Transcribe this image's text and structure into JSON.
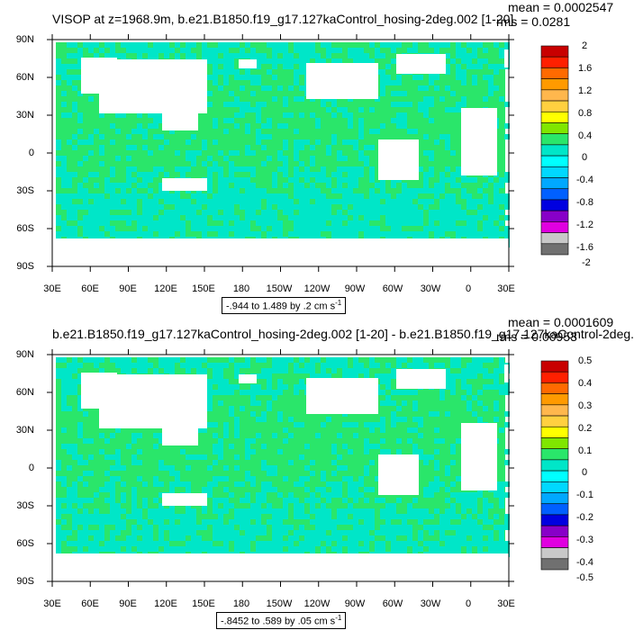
{
  "colors": {
    "ocean_low": "#00e6c8",
    "ocean_mid": "#2ae66a",
    "land": "#ffffff",
    "frame": "#000000"
  },
  "chart_data": [
    {
      "type": "heatmap",
      "title": "VISOP at z=1968.9m, b.e21.B1850.f19_g17.127kaControl_hosing-2deg.002 [1-20]",
      "mean_label": "mean = 0.0002547",
      "rms_label": "rms = 0.0281",
      "ylabel_ticks": [
        "90N",
        "60N",
        "30N",
        "0",
        "30S",
        "60S",
        "90S"
      ],
      "xlabel_ticks": [
        "30E",
        "60E",
        "90E",
        "120E",
        "150E",
        "180",
        "150W",
        "120W",
        "90W",
        "60W",
        "30W",
        "0",
        "30E"
      ],
      "range_text": "-.944 to 1.489 by .2 cm s",
      "range_unit_sup": "-1",
      "colorbar": {
        "labels": [
          "2",
          "1.6",
          "1.2",
          "0.8",
          "0.4",
          "0",
          "-0.4",
          "-0.8",
          "-1.2",
          "-1.6",
          "-2"
        ],
        "colors": [
          "#c80000",
          "#ff2000",
          "#ff6a00",
          "#ff9a00",
          "#ffb74d",
          "#ffd040",
          "#ffff00",
          "#80e600",
          "#2ae66a",
          "#00e6c8",
          "#00ffff",
          "#00d8ff",
          "#00a8ff",
          "#0060ff",
          "#0000e0",
          "#8800c8",
          "#e000e0",
          "#c8c8c8",
          "#707070"
        ]
      }
    },
    {
      "type": "heatmap",
      "title": "b.e21.B1850.f19_g17.127kaControl_hosing-2deg.002 [1-20] - b.e21.B1850.f19_g17.127kaControl-2deg.",
      "mean_label": "mean = 0.0001609",
      "rms_label": "rms = 0.00953",
      "ylabel_ticks": [
        "90N",
        "60N",
        "30N",
        "0",
        "30S",
        "60S",
        "90S"
      ],
      "xlabel_ticks": [
        "30E",
        "60E",
        "90E",
        "120E",
        "150E",
        "180",
        "150W",
        "120W",
        "90W",
        "60W",
        "30W",
        "0",
        "30E"
      ],
      "range_text": "-.8452 to .589 by .05 cm s",
      "range_unit_sup": "-1",
      "colorbar": {
        "labels": [
          "0.5",
          "0.4",
          "0.3",
          "0.2",
          "0.1",
          "0",
          "-0.1",
          "-0.2",
          "-0.3",
          "-0.4",
          "-0.5"
        ],
        "colors": [
          "#c80000",
          "#ff2000",
          "#ff6a00",
          "#ff9a00",
          "#ffb74d",
          "#ffd040",
          "#ffff00",
          "#80e600",
          "#2ae66a",
          "#00e6c8",
          "#00ffff",
          "#00d8ff",
          "#00a8ff",
          "#0060ff",
          "#0000e0",
          "#8800c8",
          "#e000e0",
          "#c8c8c8",
          "#707070"
        ]
      }
    }
  ]
}
